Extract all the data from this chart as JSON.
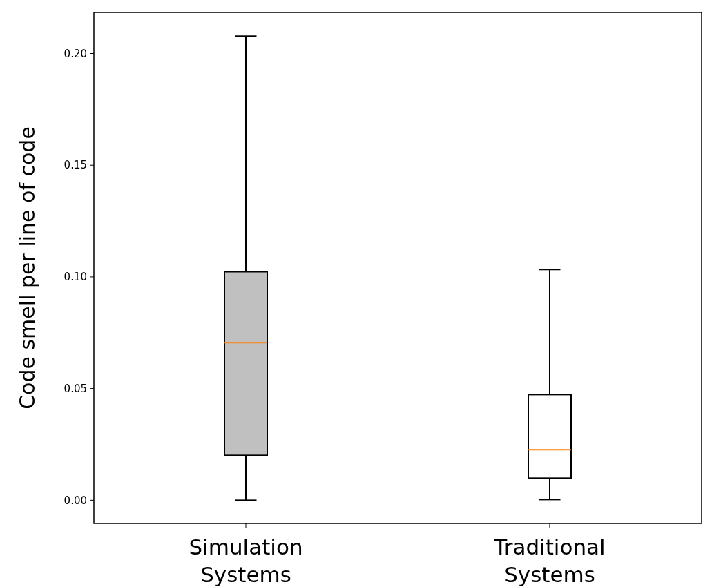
{
  "chart_data": {
    "type": "box",
    "ylabel": "Code smell per line of code",
    "categories": [
      "Simulation Systems",
      "Traditional Systems"
    ],
    "boxes": [
      {
        "low": 0,
        "q1": 0.0201,
        "median": 0.0705,
        "q3": 0.1023,
        "high": 0.2078
      },
      {
        "low": 0.0003,
        "q1": 0.0099,
        "median": 0.0226,
        "q3": 0.0473,
        "high": 0.1033
      }
    ],
    "colors": [
      "#c0c0c0",
      "#ffffff"
    ],
    "ylim": [
      -0.0104,
      0.2184
    ],
    "yticks": [
      {
        "value": 0,
        "label": "0.00"
      },
      {
        "value": 0.05,
        "label": "0.05"
      },
      {
        "value": 0.1,
        "label": "0.10"
      },
      {
        "value": 0.15,
        "label": "0.15"
      },
      {
        "value": 0.2,
        "label": "0.20"
      }
    ]
  }
}
